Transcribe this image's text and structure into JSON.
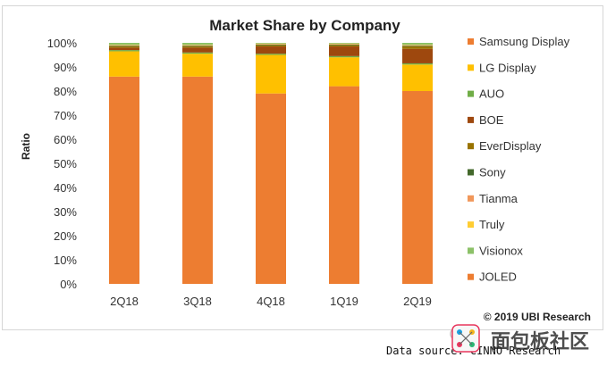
{
  "chart_data": {
    "type": "bar",
    "stacked": true,
    "title": "Market Share by Company",
    "ylabel": "Ratio",
    "xlabel": "",
    "ylim": [
      0,
      100
    ],
    "yticks": [
      "0%",
      "10%",
      "20%",
      "30%",
      "40%",
      "50%",
      "60%",
      "70%",
      "80%",
      "90%",
      "100%"
    ],
    "categories": [
      "2Q18",
      "3Q18",
      "4Q18",
      "1Q19",
      "2Q19"
    ],
    "legend_position": "right",
    "series": [
      {
        "name": "Samsung Display",
        "color": "#ED7D31",
        "values": [
          86,
          86,
          79,
          82,
          80
        ]
      },
      {
        "name": "LG Display",
        "color": "#FFC000",
        "values": [
          10.5,
          9.5,
          16,
          12,
          11
        ]
      },
      {
        "name": "AUO",
        "color": "#70AD47",
        "values": [
          0.5,
          0.5,
          0.5,
          0.5,
          0.5
        ]
      },
      {
        "name": "BOE",
        "color": "#9E480E",
        "values": [
          1,
          2,
          3,
          4,
          6
        ]
      },
      {
        "name": "EverDisplay",
        "color": "#997300",
        "values": [
          0.5,
          0.5,
          0.5,
          0.5,
          1
        ]
      },
      {
        "name": "Sony",
        "color": "#43682B",
        "values": [
          0.3,
          0.3,
          0.3,
          0.3,
          0.3
        ]
      },
      {
        "name": "Tianma",
        "color": "#F1975A",
        "values": [
          0.2,
          0.2,
          0.2,
          0.2,
          0.2
        ]
      },
      {
        "name": "Truly",
        "color": "#FFCD33",
        "values": [
          0.2,
          0.2,
          0.2,
          0.2,
          0.2
        ]
      },
      {
        "name": "Visionox",
        "color": "#8CC168",
        "values": [
          0.8,
          0.8,
          0.3,
          0.3,
          0.8
        ]
      },
      {
        "name": "JOLED",
        "color": "#ED7D31",
        "values": [
          0,
          0,
          0,
          0,
          0
        ]
      }
    ],
    "grid": false
  },
  "credit": "© 2019 UBI Research",
  "source_text": "Data source: CINNO Research",
  "watermark_text": "面包板社区"
}
